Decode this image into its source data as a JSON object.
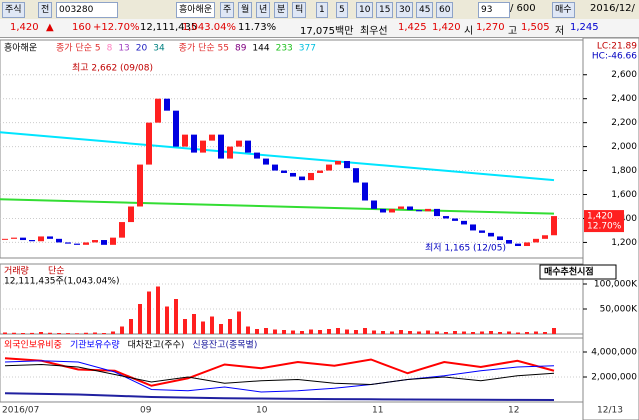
{
  "toolbar": {
    "market": "주식",
    "prev": "전",
    "code": "003280",
    "name": "흥아해운",
    "periods": [
      "주",
      "월",
      "년",
      "분",
      "틱"
    ],
    "minutes": [
      "1",
      "5",
      "10",
      "15",
      "30",
      "45",
      "60"
    ],
    "count": "93",
    "total": "/ 600",
    "buy": "매수",
    "date": "2016/12/"
  },
  "quote": {
    "price": "1,420",
    "arrow": "▲",
    "change": "160",
    "rate": "+12.70%",
    "volume": "12,111,435",
    "volume_ratio": "1,043.04%",
    "turnover": "11.73%",
    "amount": "17,075백만",
    "best_label": "최우선",
    "ask": "1,425",
    "bid": "1,420",
    "open_label": "시",
    "open": "1,270",
    "high_label": "고",
    "high": "1,505",
    "low_label": "저",
    "low": "1,245"
  },
  "chart_data": [
    {
      "type": "candlestick",
      "title": "흥아해운",
      "ma_legend": [
        {
          "text": "종가 단순 5",
          "color": "#e03030"
        },
        {
          "text": "8",
          "color": "#ff80c0"
        },
        {
          "text": "13",
          "color": "#a040c0"
        },
        {
          "text": "20",
          "color": "#2020c0"
        },
        {
          "text": "34",
          "color": "#008080"
        },
        {
          "text": "종가 단순 55",
          "color": "#e03030"
        },
        {
          "text": "89",
          "color": "#800080"
        },
        {
          "text": "144",
          "color": "#000000"
        },
        {
          "text": "233",
          "color": "#20c020"
        },
        {
          "text": "377",
          "color": "#00c0e0"
        }
      ],
      "values": [
        1230,
        1240,
        1220,
        1210,
        1250,
        1230,
        1200,
        1190,
        1180,
        1200,
        1220,
        1180,
        1240,
        1370,
        1500,
        1850,
        2200,
        2400,
        2300,
        2000,
        2100,
        1950,
        2050,
        2100,
        1900,
        2000,
        2050,
        1950,
        1900,
        1850,
        1800,
        1780,
        1750,
        1720,
        1780,
        1800,
        1850,
        1880,
        1820,
        1700,
        1550,
        1480,
        1450,
        1480,
        1500,
        1470,
        1460,
        1480,
        1420,
        1400,
        1380,
        1350,
        1300,
        1280,
        1250,
        1220,
        1190,
        1170,
        1200,
        1230,
        1260,
        1420
      ],
      "up_color": "#ff2020",
      "down_color": "#0000e0",
      "ylim": [
        1070,
        2890
      ],
      "yticks": [
        {
          "value": 1200,
          "label": "1,200"
        },
        {
          "value": 1400,
          "label": "1,400"
        },
        {
          "value": 1600,
          "label": "1,600"
        },
        {
          "value": 1800,
          "label": "1,800"
        },
        {
          "value": 2000,
          "label": "2,000"
        },
        {
          "value": 2200,
          "label": "2,200"
        },
        {
          "value": 2400,
          "label": "2,400"
        },
        {
          "value": 2600,
          "label": "2,600"
        }
      ],
      "trendlines": [
        {
          "color": "#00e5ff",
          "values": [
            2120,
            1720
          ]
        },
        {
          "color": "#33dd33",
          "values": [
            1560,
            1440
          ]
        }
      ],
      "lc": "LC:21.89",
      "hc": "HC:-46.66",
      "last_label": "1,420",
      "last_rate": "12.70%",
      "annotations": [
        "최고 2,662 (09/08)",
        "최저 1,165 (12/05)",
        "매수추천시점"
      ],
      "x_labels": [
        "2016/07",
        "09",
        "10",
        "11",
        "12",
        "12/13"
      ]
    },
    {
      "type": "bar",
      "title": "거래량",
      "subtitle": "단순",
      "summary": "12,111,435주(1,043.04%)",
      "color": "#ff2020",
      "values": [
        3000,
        2500,
        2000,
        2200,
        4000,
        2500,
        2000,
        1800,
        1500,
        2500,
        3000,
        2000,
        5000,
        15000,
        30000,
        60000,
        85000,
        95000,
        55000,
        70000,
        30000,
        40000,
        25000,
        35000,
        20000,
        30000,
        45000,
        15000,
        10000,
        12000,
        9000,
        8000,
        7000,
        6000,
        9000,
        8000,
        10000,
        12000,
        9000,
        8000,
        12000,
        7000,
        6000,
        5000,
        8000,
        6000,
        5000,
        7000,
        5000,
        4000,
        6000,
        5000,
        4000,
        5000,
        6000,
        4000,
        5000,
        3000,
        4000,
        5000,
        4000,
        12000
      ],
      "ylim": [
        0,
        140000
      ],
      "yticks": [
        {
          "value": 50000,
          "label": "50,000K"
        },
        {
          "value": 100000,
          "label": "100,000K"
        }
      ]
    },
    {
      "type": "line",
      "series": [
        {
          "name": "외국인보유비중",
          "color": "#ff0000",
          "values": [
            3500000,
            3300000,
            2600000,
            2500000,
            1300000,
            1900000,
            3000000,
            2700000,
            3200000,
            2900000,
            3400000,
            2300000,
            3200000,
            2800000,
            3300000,
            2500000
          ]
        },
        {
          "name": "기관보유수량",
          "color": "#0000ff",
          "values": [
            3200000,
            3300000,
            3200000,
            2400000,
            1000000,
            900000,
            1200000,
            800000,
            900000,
            1100000,
            1400000,
            1800000,
            2100000,
            2500000,
            2800000,
            2900000
          ]
        },
        {
          "name": "대차잔고(주수)",
          "color": "#000000",
          "values": [
            2900000,
            3000000,
            2800000,
            2200000,
            1600000,
            2000000,
            1500000,
            1700000,
            1800000,
            1500000,
            1400000,
            1800000,
            2000000,
            1700000,
            2100000,
            2300000
          ]
        },
        {
          "name": "신용잔고(종목별)",
          "color": "#2020a0",
          "values": [
            700000,
            650000,
            600000,
            500000,
            400000,
            350000,
            300000,
            280000,
            250000,
            230000,
            220000,
            200000,
            190000,
            180000,
            170000,
            160000
          ]
        }
      ],
      "ylim": [
        0,
        5120000
      ],
      "yticks": [
        {
          "value": 2000000,
          "label": "2,000,000"
        },
        {
          "value": 4000000,
          "label": "4,000,000"
        }
      ]
    }
  ]
}
